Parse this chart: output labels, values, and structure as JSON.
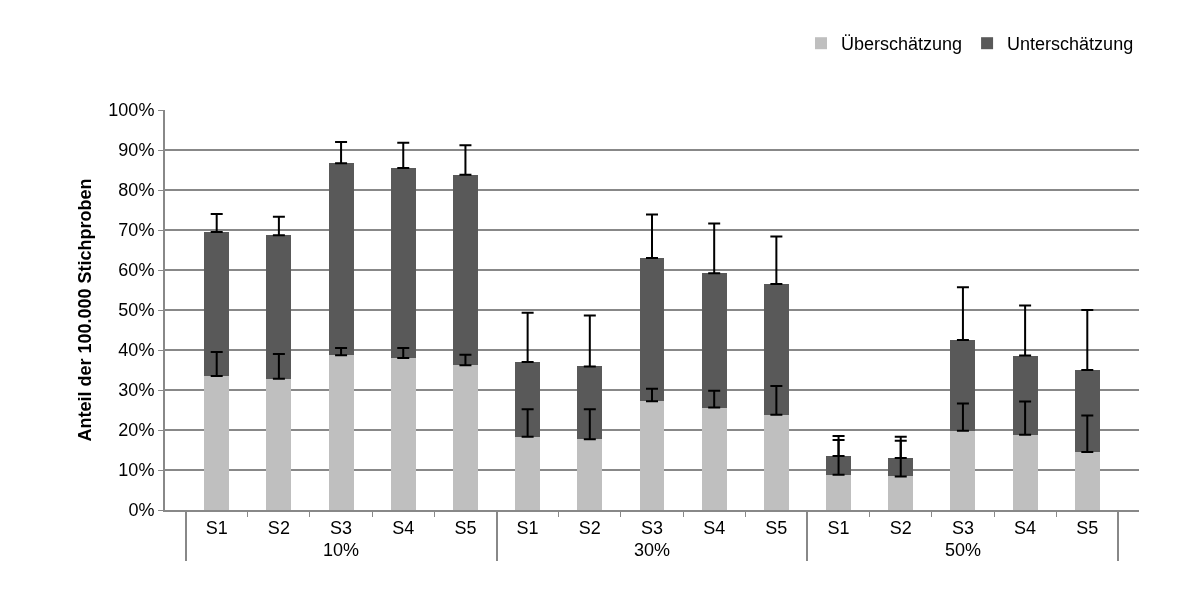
{
  "chart_data": {
    "type": "bar",
    "stacked": true,
    "ylabel": "Anteil der 100.000 Stichproben",
    "categories": [
      "S1",
      "S2",
      "S3",
      "S4",
      "S5",
      "S1",
      "S2",
      "S3",
      "S4",
      "S5",
      "S1",
      "S2",
      "S3",
      "S4",
      "S5"
    ],
    "annotations": [
      "10%",
      "30%",
      "50%"
    ],
    "series": [
      {
        "name": "Überschätzung",
        "color": "#bfbfbf",
        "values": [
          33.5,
          32.8,
          38.7,
          38,
          36.2,
          18.3,
          17.7,
          27.2,
          25.6,
          23.8,
          8.8,
          8.4,
          19.8,
          18.8,
          14.5
        ],
        "errors": [
          [
            33.5,
            39.5
          ],
          [
            32.8,
            39
          ],
          [
            38.7,
            40.5
          ],
          [
            38,
            40.5
          ],
          [
            36.2,
            38.8
          ],
          [
            18.3,
            25.2
          ],
          [
            17.7,
            25.2
          ],
          [
            27.2,
            30.3
          ],
          [
            25.6,
            29.8
          ],
          [
            23.8,
            31
          ],
          [
            8.8,
            17.5
          ],
          [
            8.4,
            17.3
          ],
          [
            19.8,
            26.6
          ],
          [
            18.8,
            27.1
          ],
          [
            14.5,
            23.6
          ]
        ]
      },
      {
        "name": "Unterschätzung",
        "color": "#595959",
        "values": [
          36,
          35.9,
          48,
          47.5,
          47.6,
          18.7,
          18.2,
          35.8,
          33.6,
          32.7,
          4.7,
          4.6,
          22.7,
          19.8,
          20.5
        ],
        "errors": [
          [
            69.5,
            74
          ],
          [
            68.7,
            73.3
          ],
          [
            86.7,
            92
          ],
          [
            85.5,
            91.8
          ],
          [
            83.8,
            91.2
          ],
          [
            37,
            49.3
          ],
          [
            35.9,
            48.6
          ],
          [
            63,
            73.9
          ],
          [
            59.2,
            71.6
          ],
          [
            56.5,
            68.4
          ],
          [
            13.5,
            18.5
          ],
          [
            13,
            18.3
          ],
          [
            42.5,
            55.7
          ],
          [
            38.6,
            51.1
          ],
          [
            35,
            50
          ]
        ]
      }
    ],
    "ylim": [
      0,
      100
    ],
    "yticks": [
      {
        "value": 0,
        "label": "0%"
      },
      {
        "value": 10,
        "label": "10%"
      },
      {
        "value": 20,
        "label": "20%"
      },
      {
        "value": 30,
        "label": "30%"
      },
      {
        "value": 40,
        "label": "40%"
      },
      {
        "value": 50,
        "label": "50%"
      },
      {
        "value": 60,
        "label": "60%"
      },
      {
        "value": 70,
        "label": "70%"
      },
      {
        "value": 80,
        "label": "80%"
      },
      {
        "value": 90,
        "label": "90%"
      },
      {
        "value": 100,
        "label": "100%"
      }
    ],
    "grid": "y",
    "legend": "top right"
  }
}
